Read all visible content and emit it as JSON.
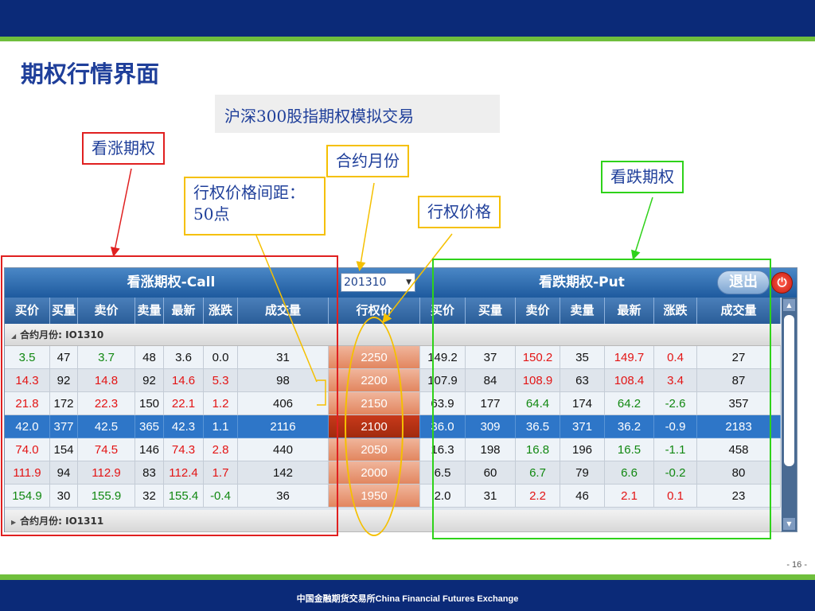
{
  "slide": {
    "title": "期权行情界面",
    "subtitle": "沪深300股指期权模拟交易",
    "page_number": "- 16 -",
    "footer": "中国金融期货交易所China Financial Futures Exchange"
  },
  "callouts": {
    "call_option": "看涨期权",
    "contract_month": "合约月份",
    "put_option": "看跌期权",
    "strike_interval_line1": "行权价格间距：",
    "strike_interval_line2": "50点",
    "strike_price": "行权价格"
  },
  "panel": {
    "call_title": "看涨期权-Call",
    "put_title": "看跌期权-Put",
    "month_value": "201310",
    "exit_label": "退出",
    "power_icon": "power-icon",
    "call_columns": [
      "买价",
      "买量",
      "卖价",
      "卖量",
      "最新",
      "涨跌",
      "成交量"
    ],
    "strike_column": "行权价",
    "put_columns": [
      "买价",
      "买量",
      "卖价",
      "卖量",
      "最新",
      "涨跌",
      "成交量"
    ],
    "group_1": "合约月份: IO1310",
    "group_2": "合约月份: IO1311",
    "rows": [
      {
        "call": [
          "3.5",
          "47",
          "3.7",
          "48",
          "3.6",
          "0.0",
          "31"
        ],
        "strike": "2250",
        "put": [
          "149.2",
          "37",
          "150.2",
          "35",
          "149.7",
          "0.4",
          "27"
        ]
      },
      {
        "call": [
          "14.3",
          "92",
          "14.8",
          "92",
          "14.6",
          "5.3",
          "98"
        ],
        "strike": "2200",
        "put": [
          "107.9",
          "84",
          "108.9",
          "63",
          "108.4",
          "3.4",
          "87"
        ]
      },
      {
        "call": [
          "21.8",
          "172",
          "22.3",
          "150",
          "22.1",
          "1.2",
          "406"
        ],
        "strike": "2150",
        "put": [
          "63.9",
          "177",
          "64.4",
          "174",
          "64.2",
          "-2.6",
          "357"
        ]
      },
      {
        "call": [
          "42.0",
          "377",
          "42.5",
          "365",
          "42.3",
          "1.1",
          "2116"
        ],
        "strike": "2100",
        "put": [
          "36.0",
          "309",
          "36.5",
          "371",
          "36.2",
          "-0.9",
          "2183"
        ]
      },
      {
        "call": [
          "74.0",
          "154",
          "74.5",
          "146",
          "74.3",
          "2.8",
          "440"
        ],
        "strike": "2050",
        "put": [
          "16.3",
          "198",
          "16.8",
          "196",
          "16.5",
          "-1.1",
          "458"
        ]
      },
      {
        "call": [
          "111.9",
          "94",
          "112.9",
          "83",
          "112.4",
          "1.7",
          "142"
        ],
        "strike": "2000",
        "put": [
          "6.5",
          "60",
          "6.7",
          "79",
          "6.6",
          "-0.2",
          "80"
        ]
      },
      {
        "call": [
          "154.9",
          "30",
          "155.9",
          "32",
          "155.4",
          "-0.4",
          "36"
        ],
        "strike": "1950",
        "put": [
          "2.0",
          "31",
          "2.2",
          "46",
          "2.1",
          "0.1",
          "23"
        ]
      }
    ],
    "selected_row": 3
  },
  "colors": {
    "up": "#e31414",
    "down": "#118811",
    "neutral": "#111111",
    "call_outline": "#e02020",
    "put_outline": "#2fd21a",
    "note_outline": "#f5c000"
  }
}
